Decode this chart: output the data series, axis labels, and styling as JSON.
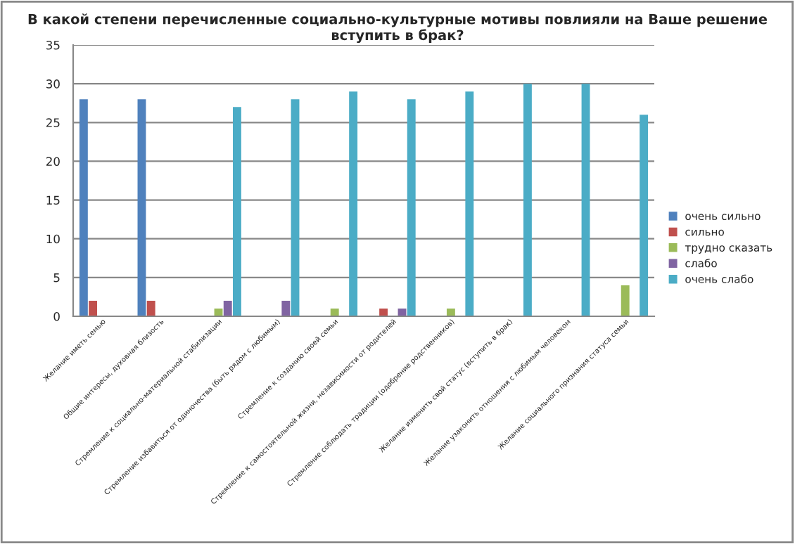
{
  "chart_data": {
    "type": "bar",
    "title": "В какой степени перечисленные социально-культурные мотивы повлияли на Ваше решение вступить в брак?",
    "categories": [
      "Желание иметь семью",
      "Общие интересы, духовная близость",
      "Стремление к социально-материальной стабилизации",
      "Стремление избавиться от одиночества (быть рядом с любимым)",
      "Стремление к созданию своей семьи",
      "Стремление к самостоятельной жизни, независимости от родителей",
      "Стремление соблюдать традиции (одобрение родственников)",
      "Желание изменить свой статус (вступить в брак)",
      "Желание узаконить отношения с любимым человеком",
      "Желание социального признания статуса семьи"
    ],
    "series": [
      {
        "name": "очень сильно",
        "color": "#4f81bd",
        "values": [
          28,
          28,
          null,
          null,
          null,
          null,
          null,
          null,
          null,
          null
        ]
      },
      {
        "name": "сильно",
        "color": "#c0504d",
        "values": [
          2,
          2,
          null,
          null,
          null,
          1,
          null,
          null,
          null,
          null
        ]
      },
      {
        "name": "трудно сказать",
        "color": "#9bbb59",
        "values": [
          null,
          null,
          1,
          null,
          1,
          null,
          1,
          null,
          null,
          4
        ]
      },
      {
        "name": "слабо",
        "color": "#8064a2",
        "values": [
          null,
          null,
          2,
          2,
          null,
          1,
          null,
          null,
          null,
          null
        ]
      },
      {
        "name": "очень слабо",
        "color": "#4bacc6",
        "values": [
          null,
          null,
          27,
          28,
          29,
          28,
          29,
          30,
          30,
          26
        ]
      }
    ],
    "ylim": [
      0,
      35
    ],
    "yticks": [
      0,
      5,
      10,
      15,
      20,
      25,
      30,
      35
    ],
    "grid": "y",
    "legend": "right"
  }
}
